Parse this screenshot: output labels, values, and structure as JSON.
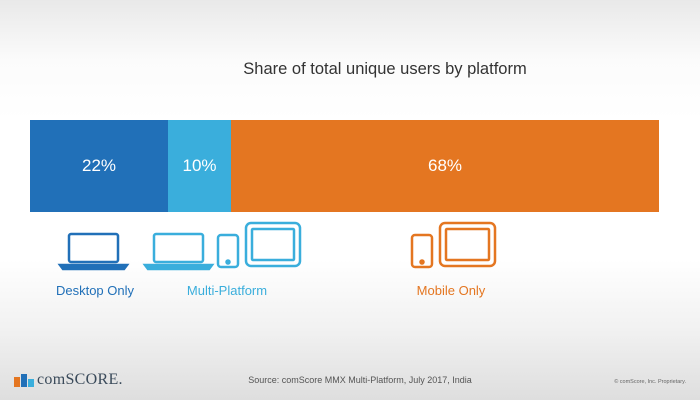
{
  "chart_data": {
    "type": "bar",
    "orientation": "horizontal-stacked-100",
    "title": "Share of total unique users by platform",
    "categories": [
      "Desktop Only",
      "Multi-Platform",
      "Mobile Only"
    ],
    "values": [
      22,
      10,
      68
    ],
    "value_labels": [
      "22%",
      "10%",
      "68%"
    ],
    "colors": [
      "#2170b8",
      "#3aaedc",
      "#e47621"
    ],
    "xlim": [
      0,
      100
    ],
    "grid": false,
    "legend": "below-bar"
  },
  "icons": {
    "desktop_only": [
      "laptop-icon"
    ],
    "multi_platform": [
      "laptop-icon",
      "phone-icon",
      "tablet-icon"
    ],
    "mobile_only": [
      "phone-icon",
      "tablet-icon"
    ]
  },
  "footer": {
    "brand": "comSCORE.",
    "source": "Source: comScore MMX Multi-Platform,  July 2017, India",
    "copyright": "© comScore, Inc. Proprietary."
  }
}
